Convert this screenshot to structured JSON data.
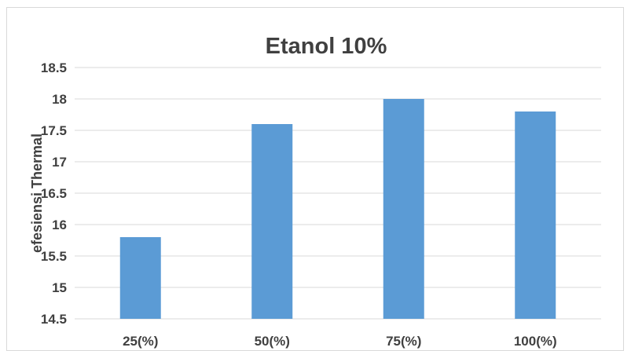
{
  "chart_data": {
    "type": "bar",
    "title": "Etanol 10%",
    "xlabel": "",
    "ylabel": "efesiensi Thermal",
    "categories": [
      "25(%)",
      "50(%)",
      "75(%)",
      "100(%)"
    ],
    "values": [
      15.8,
      17.6,
      18.0,
      17.8
    ],
    "ylim": [
      14.5,
      18.5
    ],
    "yticks": [
      "14.5",
      "15",
      "15.5",
      "16",
      "16.5",
      "17",
      "17.5",
      "18",
      "18.5"
    ],
    "grid": true,
    "legend": "none",
    "bar_color": "#5b9bd5"
  }
}
